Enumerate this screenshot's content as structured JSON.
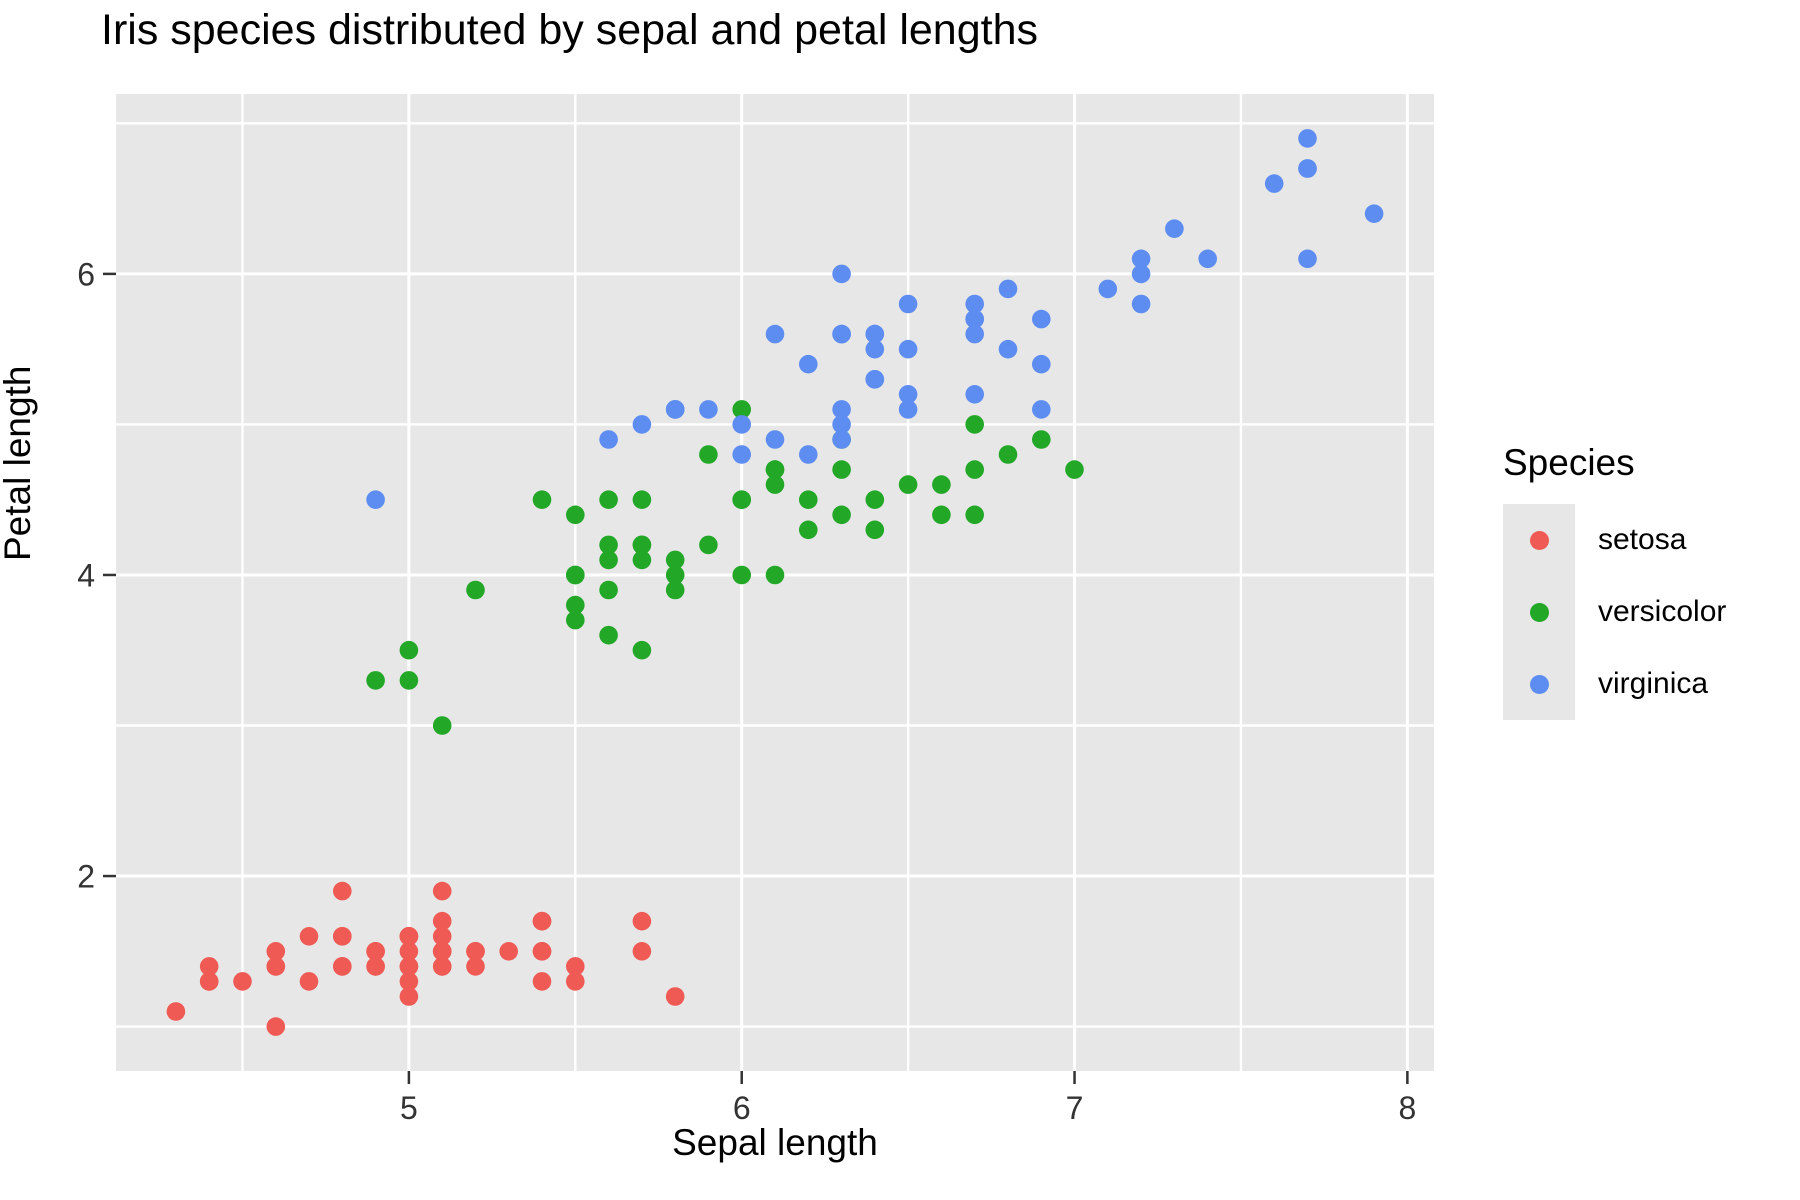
{
  "chart_data": {
    "type": "scatter",
    "title": "Iris species distributed by sepal and petal lengths",
    "xlabel": "Sepal length",
    "ylabel": "Petal length",
    "legend": {
      "title": "Species",
      "position": "right"
    },
    "axes": {
      "xlim": [
        4.12,
        8.08
      ],
      "ylim": [
        0.705,
        7.195
      ],
      "x_major_ticks": [
        5,
        6,
        7,
        8
      ],
      "y_major_ticks": [
        2,
        4,
        6
      ],
      "x_minor_ticks": [
        4.5,
        5.5,
        6.5,
        7.5
      ],
      "y_minor_ticks": [
        1,
        3,
        5,
        7
      ],
      "grid": "white major and minor gridlines on gray panel"
    },
    "style": {
      "panel_bg": "#E7E7E7",
      "grid_color": "#FFFFFF",
      "tick_color": "#333333",
      "tick_label_color": "#333333",
      "title_color": "#000000",
      "point_radius_px": 9.3
    },
    "series": [
      {
        "name": "setosa",
        "color": "#EF5B54",
        "points": [
          [
            5.1,
            1.4
          ],
          [
            4.9,
            1.4
          ],
          [
            4.7,
            1.3
          ],
          [
            4.6,
            1.5
          ],
          [
            5.0,
            1.4
          ],
          [
            5.4,
            1.7
          ],
          [
            4.6,
            1.4
          ],
          [
            5.0,
            1.5
          ],
          [
            4.4,
            1.4
          ],
          [
            4.9,
            1.5
          ],
          [
            5.4,
            1.5
          ],
          [
            4.8,
            1.6
          ],
          [
            4.8,
            1.4
          ],
          [
            4.3,
            1.1
          ],
          [
            5.8,
            1.2
          ],
          [
            5.7,
            1.5
          ],
          [
            5.4,
            1.3
          ],
          [
            5.1,
            1.4
          ],
          [
            5.7,
            1.7
          ],
          [
            5.1,
            1.5
          ],
          [
            5.4,
            1.7
          ],
          [
            5.1,
            1.5
          ],
          [
            4.6,
            1.0
          ],
          [
            5.1,
            1.7
          ],
          [
            4.8,
            1.9
          ],
          [
            5.0,
            1.6
          ],
          [
            5.0,
            1.6
          ],
          [
            5.2,
            1.5
          ],
          [
            5.2,
            1.4
          ],
          [
            4.7,
            1.6
          ],
          [
            4.8,
            1.6
          ],
          [
            5.4,
            1.5
          ],
          [
            5.2,
            1.5
          ],
          [
            5.5,
            1.4
          ],
          [
            4.9,
            1.5
          ],
          [
            5.0,
            1.2
          ],
          [
            5.5,
            1.3
          ],
          [
            4.9,
            1.4
          ],
          [
            4.4,
            1.3
          ],
          [
            5.1,
            1.5
          ],
          [
            5.0,
            1.3
          ],
          [
            4.5,
            1.3
          ],
          [
            4.4,
            1.3
          ],
          [
            5.0,
            1.6
          ],
          [
            5.1,
            1.9
          ],
          [
            4.8,
            1.4
          ],
          [
            5.1,
            1.6
          ],
          [
            4.6,
            1.4
          ],
          [
            5.3,
            1.5
          ],
          [
            5.0,
            1.4
          ]
        ]
      },
      {
        "name": "versicolor",
        "color": "#22A727",
        "points": [
          [
            7.0,
            4.7
          ],
          [
            6.4,
            4.5
          ],
          [
            6.9,
            4.9
          ],
          [
            5.5,
            4.0
          ],
          [
            6.5,
            4.6
          ],
          [
            5.7,
            4.5
          ],
          [
            6.3,
            4.7
          ],
          [
            4.9,
            3.3
          ],
          [
            6.6,
            4.6
          ],
          [
            5.2,
            3.9
          ],
          [
            5.0,
            3.5
          ],
          [
            5.9,
            4.2
          ],
          [
            6.0,
            4.0
          ],
          [
            6.1,
            4.7
          ],
          [
            5.6,
            3.6
          ],
          [
            6.7,
            4.4
          ],
          [
            5.6,
            4.5
          ],
          [
            5.8,
            4.1
          ],
          [
            6.2,
            4.5
          ],
          [
            5.6,
            3.9
          ],
          [
            5.9,
            4.8
          ],
          [
            6.1,
            4.0
          ],
          [
            6.3,
            4.9
          ],
          [
            6.1,
            4.7
          ],
          [
            6.4,
            4.3
          ],
          [
            6.6,
            4.4
          ],
          [
            6.8,
            4.8
          ],
          [
            6.7,
            5.0
          ],
          [
            6.0,
            4.5
          ],
          [
            5.7,
            3.5
          ],
          [
            5.5,
            3.8
          ],
          [
            5.5,
            3.7
          ],
          [
            5.8,
            3.9
          ],
          [
            6.0,
            5.1
          ],
          [
            5.4,
            4.5
          ],
          [
            6.0,
            4.5
          ],
          [
            6.7,
            4.7
          ],
          [
            6.3,
            4.4
          ],
          [
            5.6,
            4.1
          ],
          [
            5.5,
            4.0
          ],
          [
            5.5,
            4.4
          ],
          [
            6.1,
            4.6
          ],
          [
            5.8,
            4.0
          ],
          [
            5.0,
            3.3
          ],
          [
            5.6,
            4.2
          ],
          [
            5.7,
            4.2
          ],
          [
            5.7,
            4.2
          ],
          [
            6.2,
            4.3
          ],
          [
            5.1,
            3.0
          ],
          [
            5.7,
            4.1
          ]
        ]
      },
      {
        "name": "virginica",
        "color": "#5E8DF2",
        "points": [
          [
            6.3,
            6.0
          ],
          [
            5.8,
            5.1
          ],
          [
            7.1,
            5.9
          ],
          [
            6.3,
            5.6
          ],
          [
            6.5,
            5.8
          ],
          [
            7.6,
            6.6
          ],
          [
            4.9,
            4.5
          ],
          [
            7.3,
            6.3
          ],
          [
            6.7,
            5.8
          ],
          [
            7.2,
            6.1
          ],
          [
            6.5,
            5.1
          ],
          [
            6.4,
            5.3
          ],
          [
            6.8,
            5.5
          ],
          [
            5.7,
            5.0
          ],
          [
            5.8,
            5.1
          ],
          [
            6.4,
            5.3
          ],
          [
            6.5,
            5.5
          ],
          [
            7.7,
            6.7
          ],
          [
            7.7,
            6.9
          ],
          [
            6.0,
            5.0
          ],
          [
            6.9,
            5.7
          ],
          [
            5.6,
            4.9
          ],
          [
            7.7,
            6.7
          ],
          [
            6.3,
            4.9
          ],
          [
            6.7,
            5.7
          ],
          [
            7.2,
            6.0
          ],
          [
            6.2,
            4.8
          ],
          [
            6.1,
            4.9
          ],
          [
            6.4,
            5.6
          ],
          [
            7.2,
            5.8
          ],
          [
            7.4,
            6.1
          ],
          [
            7.9,
            6.4
          ],
          [
            6.4,
            5.6
          ],
          [
            6.3,
            5.1
          ],
          [
            6.1,
            5.6
          ],
          [
            7.7,
            6.1
          ],
          [
            6.3,
            5.6
          ],
          [
            6.4,
            5.5
          ],
          [
            6.0,
            4.8
          ],
          [
            6.9,
            5.4
          ],
          [
            6.7,
            5.6
          ],
          [
            6.9,
            5.1
          ],
          [
            5.8,
            5.1
          ],
          [
            6.8,
            5.9
          ],
          [
            6.7,
            5.7
          ],
          [
            6.7,
            5.2
          ],
          [
            6.3,
            5.0
          ],
          [
            6.5,
            5.2
          ],
          [
            6.2,
            5.4
          ],
          [
            5.9,
            5.1
          ]
        ]
      }
    ]
  }
}
